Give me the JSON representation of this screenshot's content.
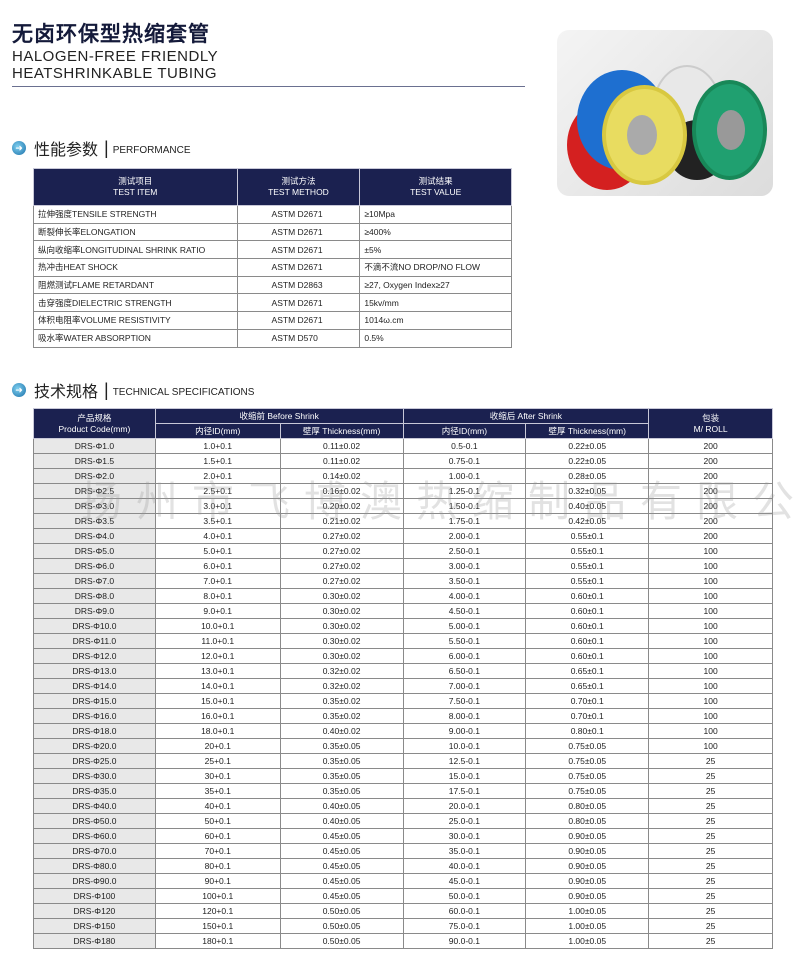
{
  "header": {
    "title_cn": "无卤环保型热缩套管",
    "title_en_line1": "HALOGEN-FREE FRIENDLY",
    "title_en_line2": "HEATSHRINKABLE TUBING"
  },
  "performance": {
    "heading_cn": "性能参数",
    "heading_en": "PERFORMANCE",
    "columns": [
      [
        "测试项目",
        "TEST ITEM"
      ],
      [
        "测试方法",
        "TEST METHOD"
      ],
      [
        "测试结果",
        "TEST VALUE"
      ]
    ],
    "rows": [
      [
        "拉伸强度TENSILE STRENGTH",
        "ASTM D2671",
        "≥10Mpa"
      ],
      [
        "断裂伸长率ELONGATION",
        "ASTM D2671",
        "≥400%"
      ],
      [
        "纵向收缩率LONGITUDINAL SHRINK RATIO",
        "ASTM D2671",
        "±5%"
      ],
      [
        "热冲击HEAT SHOCK",
        "ASTM D2671",
        "不滴不流NO DROP/NO FLOW"
      ],
      [
        "阻燃测试FLAME RETARDANT",
        "ASTM D2863",
        "≥27, Oxygen Index≥27"
      ],
      [
        "击穿强度DIELECTRIC STRENGTH",
        "ASTM D2671",
        "15kv/mm"
      ],
      [
        "体积电阻率VOLUME RESISTIVITY",
        "ASTM D2671",
        "1014ω.cm"
      ],
      [
        "吸水率WATER ABSORPTION",
        "ASTM D570",
        "0.5%"
      ]
    ]
  },
  "specs": {
    "heading_cn": "技术规格",
    "heading_en": "TECHNICAL SPECIFICATIONS",
    "col_product": [
      "产品规格",
      "Product Code(mm)"
    ],
    "col_before": "收缩前 Before Shrink",
    "col_after": "收缩后 After Shrink",
    "col_pack": [
      "包装",
      "M/ ROLL"
    ],
    "sub_id": "内径ID(mm)",
    "sub_thick": "壁厚 Thickness(mm)",
    "rows": [
      [
        "DRS-Φ1.0",
        "1.0+0.1",
        "0.11±0.02",
        "0.5-0.1",
        "0.22±0.05",
        "200"
      ],
      [
        "DRS-Φ1.5",
        "1.5+0.1",
        "0.11±0.02",
        "0.75-0.1",
        "0.22±0.05",
        "200"
      ],
      [
        "DRS-Φ2.0",
        "2.0+0.1",
        "0.14±0.02",
        "1.00-0.1",
        "0.28±0.05",
        "200"
      ],
      [
        "DRS-Φ2.5",
        "2.5+0.1",
        "0.16±0.02",
        "1.25-0.1",
        "0.32±0.05",
        "200"
      ],
      [
        "DRS-Φ3.0",
        "3.0+0.1",
        "0.20±0.02",
        "1.50-0.1",
        "0.40±0.05",
        "200"
      ],
      [
        "DRS-Φ3.5",
        "3.5+0.1",
        "0.21±0.02",
        "1.75-0.1",
        "0.42±0.05",
        "200"
      ],
      [
        "DRS-Φ4.0",
        "4.0+0.1",
        "0.27±0.02",
        "2.00-0.1",
        "0.55±0.1",
        "200"
      ],
      [
        "DRS-Φ5.0",
        "5.0+0.1",
        "0.27±0.02",
        "2.50-0.1",
        "0.55±0.1",
        "100"
      ],
      [
        "DRS-Φ6.0",
        "6.0+0.1",
        "0.27±0.02",
        "3.00-0.1",
        "0.55±0.1",
        "100"
      ],
      [
        "DRS-Φ7.0",
        "7.0+0.1",
        "0.27±0.02",
        "3.50-0.1",
        "0.55±0.1",
        "100"
      ],
      [
        "DRS-Φ8.0",
        "8.0+0.1",
        "0.30±0.02",
        "4.00-0.1",
        "0.60±0.1",
        "100"
      ],
      [
        "DRS-Φ9.0",
        "9.0+0.1",
        "0.30±0.02",
        "4.50-0.1",
        "0.60±0.1",
        "100"
      ],
      [
        "DRS-Φ10.0",
        "10.0+0.1",
        "0.30±0.02",
        "5.00-0.1",
        "0.60±0.1",
        "100"
      ],
      [
        "DRS-Φ11.0",
        "11.0+0.1",
        "0.30±0.02",
        "5.50-0.1",
        "0.60±0.1",
        "100"
      ],
      [
        "DRS-Φ12.0",
        "12.0+0.1",
        "0.30±0.02",
        "6.00-0.1",
        "0.60±0.1",
        "100"
      ],
      [
        "DRS-Φ13.0",
        "13.0+0.1",
        "0.32±0.02",
        "6.50-0.1",
        "0.65±0.1",
        "100"
      ],
      [
        "DRS-Φ14.0",
        "14.0+0.1",
        "0.32±0.02",
        "7.00-0.1",
        "0.65±0.1",
        "100"
      ],
      [
        "DRS-Φ15.0",
        "15.0+0.1",
        "0.35±0.02",
        "7.50-0.1",
        "0.70±0.1",
        "100"
      ],
      [
        "DRS-Φ16.0",
        "16.0+0.1",
        "0.35±0.02",
        "8.00-0.1",
        "0.70±0.1",
        "100"
      ],
      [
        "DRS-Φ18.0",
        "18.0+0.1",
        "0.40±0.02",
        "9.00-0.1",
        "0.80±0.1",
        "100"
      ],
      [
        "DRS-Φ20.0",
        "20+0.1",
        "0.35±0.05",
        "10.0-0.1",
        "0.75±0.05",
        "100"
      ],
      [
        "DRS-Φ25.0",
        "25+0.1",
        "0.35±0.05",
        "12.5-0.1",
        "0.75±0.05",
        "25"
      ],
      [
        "DRS-Φ30.0",
        "30+0.1",
        "0.35±0.05",
        "15.0-0.1",
        "0.75±0.05",
        "25"
      ],
      [
        "DRS-Φ35.0",
        "35+0.1",
        "0.35±0.05",
        "17.5-0.1",
        "0.75±0.05",
        "25"
      ],
      [
        "DRS-Φ40.0",
        "40+0.1",
        "0.40±0.05",
        "20.0-0.1",
        "0.80±0.05",
        "25"
      ],
      [
        "DRS-Φ50.0",
        "50+0.1",
        "0.40±0.05",
        "25.0-0.1",
        "0.80±0.05",
        "25"
      ],
      [
        "DRS-Φ60.0",
        "60+0.1",
        "0.45±0.05",
        "30.0-0.1",
        "0.90±0.05",
        "25"
      ],
      [
        "DRS-Φ70.0",
        "70+0.1",
        "0.45±0.05",
        "35.0-0.1",
        "0.90±0.05",
        "25"
      ],
      [
        "DRS-Φ80.0",
        "80+0.1",
        "0.45±0.05",
        "40.0-0.1",
        "0.90±0.05",
        "25"
      ],
      [
        "DRS-Φ90.0",
        "90+0.1",
        "0.45±0.05",
        "45.0-0.1",
        "0.90±0.05",
        "25"
      ],
      [
        "DRS-Φ100",
        "100+0.1",
        "0.45±0.05",
        "50.0-0.1",
        "0.90±0.05",
        "25"
      ],
      [
        "DRS-Φ120",
        "120+0.1",
        "0.50±0.05",
        "60.0-0.1",
        "1.00±0.05",
        "25"
      ],
      [
        "DRS-Φ150",
        "150+0.1",
        "0.50±0.05",
        "75.0-0.1",
        "1.00±0.05",
        "25"
      ],
      [
        "DRS-Φ180",
        "180+0.1",
        "0.50±0.05",
        "90.0-0.1",
        "1.00±0.05",
        "25"
      ]
    ]
  },
  "watermark": "扬州市飞博澳热缩制品有限公司",
  "colors": {
    "header_bg": "#1b2150",
    "title": "#141a3a"
  }
}
